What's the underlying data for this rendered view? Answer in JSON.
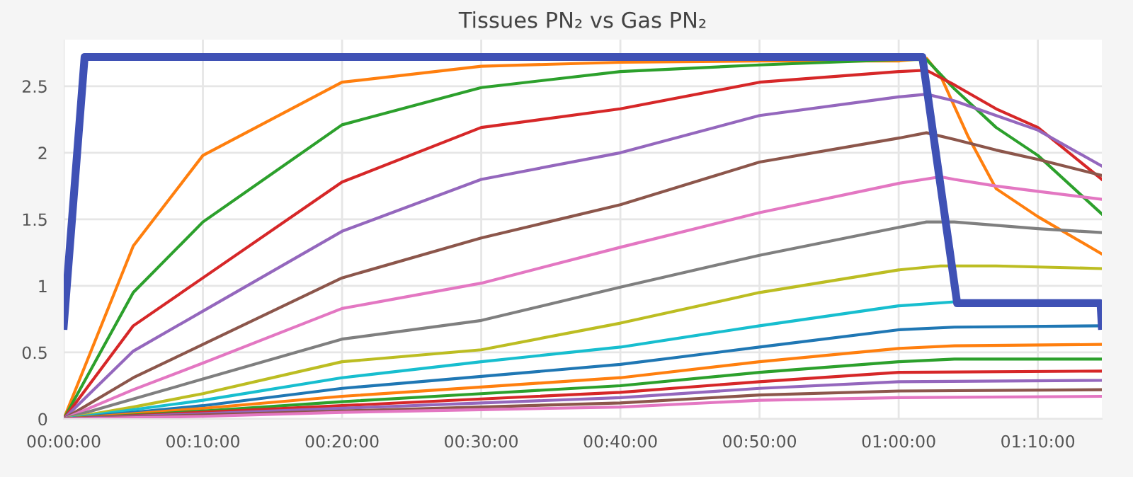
{
  "chart_data": {
    "type": "line",
    "title": "Tissues PN₂ vs Gas PN₂",
    "xlim": [
      0,
      1.2433
    ],
    "ylim": [
      0,
      2.85
    ],
    "xticks": [
      {
        "value": 0,
        "label": "00:00:00"
      },
      {
        "value": 0.16667,
        "label": "00:10:00"
      },
      {
        "value": 0.33333,
        "label": "00:20:00"
      },
      {
        "value": 0.5,
        "label": "00:30:00"
      },
      {
        "value": 0.66667,
        "label": "00:40:00"
      },
      {
        "value": 0.83333,
        "label": "00:50:00"
      },
      {
        "value": 1,
        "label": "01:00:00"
      },
      {
        "value": 1.16667,
        "label": "01:10:00"
      }
    ],
    "yticks": [
      0,
      0.5,
      1,
      1.5,
      2,
      2.5
    ],
    "grid": true,
    "marker": "none",
    "line_style": "solid",
    "series": [
      {
        "color": "#3f51b5",
        "x": [
          0,
          0.025,
          1.0283,
          1.07,
          1.2417,
          1.2433
        ],
        "values": [
          0.7,
          2.72,
          2.72,
          0.87,
          0.87,
          0.7
        ]
      },
      {
        "color": "#ff7f0e",
        "x": [
          0,
          0.0833,
          0.1667,
          0.3333,
          0.5,
          0.6667,
          0.8333,
          1,
          1.0333,
          1.05,
          1.0833,
          1.1167,
          1.1667,
          1.2433
        ],
        "values": [
          0,
          1.3,
          1.98,
          2.53,
          2.65,
          2.68,
          2.69,
          2.69,
          2.71,
          2.58,
          2.12,
          1.73,
          1.52,
          1.24
        ]
      },
      {
        "color": "#2ca02c",
        "x": [
          0,
          0.0833,
          0.1667,
          0.3333,
          0.5,
          0.6667,
          0.8333,
          1,
          1.0333,
          1.0667,
          1.1167,
          1.1667,
          1.2433
        ],
        "values": [
          0,
          0.95,
          1.48,
          2.21,
          2.49,
          2.61,
          2.66,
          2.7,
          2.7,
          2.48,
          2.19,
          1.98,
          1.54
        ]
      },
      {
        "color": "#d62728",
        "x": [
          0,
          0.0833,
          0.1667,
          0.3333,
          0.5,
          0.6667,
          0.8333,
          1,
          1.0333,
          1.0667,
          1.1167,
          1.1667,
          1.2433
        ],
        "values": [
          0,
          0.7,
          1.06,
          1.78,
          2.19,
          2.33,
          2.53,
          2.61,
          2.62,
          2.51,
          2.33,
          2.19,
          1.8
        ]
      },
      {
        "color": "#9467bd",
        "x": [
          0,
          0.0833,
          0.1667,
          0.3333,
          0.5,
          0.6667,
          0.8333,
          1,
          1.0333,
          1.0667,
          1.1167,
          1.1667,
          1.2433
        ],
        "values": [
          0,
          0.51,
          0.81,
          1.41,
          1.8,
          2.0,
          2.28,
          2.42,
          2.44,
          2.39,
          2.28,
          2.17,
          1.9
        ]
      },
      {
        "color": "#8c564b",
        "x": [
          0,
          0.0833,
          0.1667,
          0.3333,
          0.5,
          0.6667,
          0.8333,
          1,
          1.0333,
          1.0667,
          1.1167,
          1.1667,
          1.2433
        ],
        "values": [
          0,
          0.31,
          0.56,
          1.06,
          1.36,
          1.61,
          1.93,
          2.11,
          2.15,
          2.1,
          2.02,
          1.95,
          1.83
        ]
      },
      {
        "color": "#e377c2",
        "x": [
          0,
          0.0833,
          0.1667,
          0.3333,
          0.5,
          0.6667,
          0.8333,
          1,
          1.05,
          1.0667,
          1.1167,
          1.1667,
          1.2433
        ],
        "values": [
          0,
          0.22,
          0.42,
          0.83,
          1.02,
          1.29,
          1.55,
          1.77,
          1.82,
          1.8,
          1.75,
          1.71,
          1.65
        ]
      },
      {
        "color": "#7f7f7f",
        "x": [
          0,
          0.0833,
          0.1667,
          0.3333,
          0.5,
          0.6667,
          0.8333,
          1,
          1.0333,
          1.0667,
          1.1667,
          1.2433
        ],
        "values": [
          0,
          0.15,
          0.3,
          0.6,
          0.74,
          0.99,
          1.23,
          1.44,
          1.48,
          1.48,
          1.43,
          1.4
        ]
      },
      {
        "color": "#bcbd22",
        "x": [
          0,
          0.0833,
          0.1667,
          0.3333,
          0.5,
          0.6667,
          0.8333,
          1,
          1.05,
          1.1167,
          1.2433
        ],
        "values": [
          0,
          0.09,
          0.19,
          0.43,
          0.52,
          0.72,
          0.95,
          1.12,
          1.15,
          1.15,
          1.13
        ]
      },
      {
        "color": "#17becf",
        "x": [
          0,
          0.1667,
          0.3333,
          0.5,
          0.6667,
          0.8333,
          1,
          1.0667,
          1.2433
        ],
        "values": [
          0,
          0.14,
          0.31,
          0.43,
          0.54,
          0.7,
          0.85,
          0.88,
          0.88
        ]
      },
      {
        "color": "#1f77b4",
        "x": [
          0,
          0.1667,
          0.3333,
          0.5,
          0.6667,
          0.8333,
          1,
          1.0667,
          1.2433
        ],
        "values": [
          0,
          0.1,
          0.23,
          0.32,
          0.41,
          0.54,
          0.67,
          0.69,
          0.7
        ]
      },
      {
        "color": "#ff7f0e",
        "x": [
          0,
          0.1667,
          0.3333,
          0.5,
          0.6667,
          0.8333,
          1,
          1.0667,
          1.2433
        ],
        "values": [
          0,
          0.08,
          0.17,
          0.24,
          0.31,
          0.43,
          0.53,
          0.55,
          0.56
        ]
      },
      {
        "color": "#2ca02c",
        "x": [
          0,
          0.1667,
          0.3333,
          0.5,
          0.6667,
          0.8333,
          1,
          1.0667,
          1.2433
        ],
        "values": [
          0,
          0.06,
          0.13,
          0.19,
          0.25,
          0.35,
          0.43,
          0.45,
          0.45
        ]
      },
      {
        "color": "#d62728",
        "x": [
          0,
          0.1667,
          0.3333,
          0.5,
          0.6667,
          0.8333,
          1,
          1.2433
        ],
        "values": [
          0,
          0.05,
          0.1,
          0.15,
          0.2,
          0.28,
          0.35,
          0.36
        ]
      },
      {
        "color": "#9467bd",
        "x": [
          0,
          0.1667,
          0.3333,
          0.5,
          0.6667,
          0.8333,
          1,
          1.2433
        ],
        "values": [
          0,
          0.04,
          0.08,
          0.12,
          0.16,
          0.23,
          0.28,
          0.29
        ]
      },
      {
        "color": "#8c564b",
        "x": [
          0,
          0.1667,
          0.3333,
          0.5,
          0.6667,
          0.8333,
          1,
          1.2433
        ],
        "values": [
          0,
          0.03,
          0.06,
          0.09,
          0.12,
          0.18,
          0.21,
          0.22
        ]
      },
      {
        "color": "#e377c2",
        "x": [
          0,
          0.1667,
          0.3333,
          0.5,
          0.6667,
          0.8333,
          1,
          1.2433
        ],
        "values": [
          0,
          0.02,
          0.05,
          0.07,
          0.09,
          0.14,
          0.16,
          0.17
        ]
      }
    ]
  }
}
